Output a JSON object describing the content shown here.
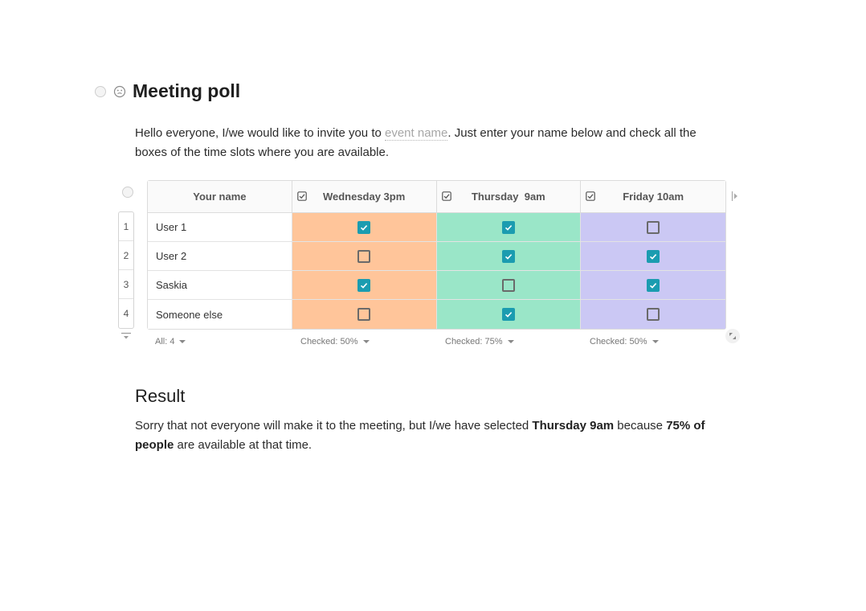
{
  "doc": {
    "title": "Meeting poll",
    "intro_before": "Hello everyone, I/we would like to invite you to ",
    "intro_placeholder": "event name",
    "intro_after": ". Just enter your name below and check all the boxes of the time slots where you are available."
  },
  "table": {
    "columns": [
      "Your name",
      "Wednesday 3pm",
      "Thursday  9am",
      "Friday 10am"
    ],
    "column_colors": [
      "#ffc59a",
      "#9ae6c8",
      "#cbc8f4"
    ],
    "row_numbers": [
      "1",
      "2",
      "3",
      "4"
    ],
    "rows": [
      {
        "name": "User 1",
        "checks": [
          true,
          true,
          false
        ]
      },
      {
        "name": "User 2",
        "checks": [
          false,
          true,
          true
        ]
      },
      {
        "name": "Saskia",
        "checks": [
          true,
          false,
          true
        ]
      },
      {
        "name": "Someone else",
        "checks": [
          false,
          true,
          false
        ]
      }
    ],
    "summary": [
      "All: 4",
      "Checked: 50%",
      "Checked: 75%",
      "Checked: 50%"
    ],
    "checkbox_color": "#1b9cb0"
  },
  "result": {
    "heading": "Result",
    "part1": "Sorry that not everyone will make it to the meeting, but I/we have selected ",
    "bold1": "Thursday 9am",
    "part2": " because ",
    "bold2": "75% of people",
    "part3": " are available at that time."
  }
}
